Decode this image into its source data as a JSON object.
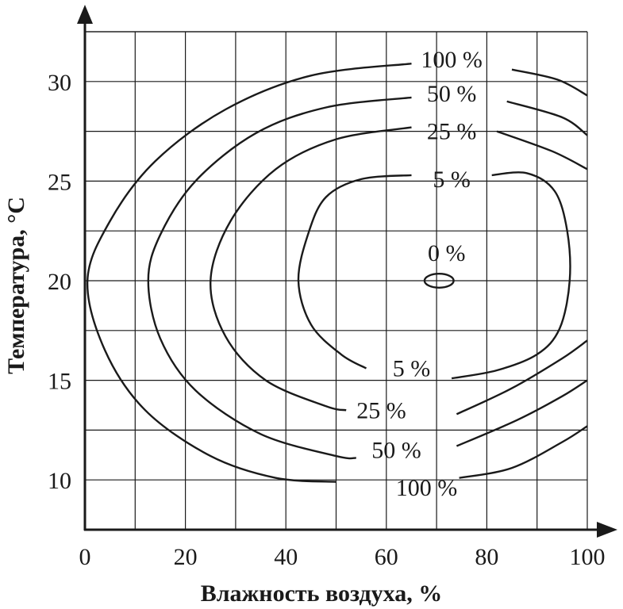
{
  "chart_data": {
    "type": "contour",
    "xlabel": "Влажность воздуха, %",
    "ylabel": "Температура, °C",
    "xlim": [
      0,
      100
    ],
    "ylim": [
      7.5,
      32.5
    ],
    "x_ticks": [
      {
        "value": 0,
        "label": "0"
      },
      {
        "value": 20,
        "label": "20"
      },
      {
        "value": 40,
        "label": "40"
      },
      {
        "value": 60,
        "label": "60"
      },
      {
        "value": 80,
        "label": "80"
      },
      {
        "value": 100,
        "label": "100"
      }
    ],
    "y_ticks": [
      {
        "value": 10,
        "label": "10"
      },
      {
        "value": 15,
        "label": "15"
      },
      {
        "value": 20,
        "label": "20"
      },
      {
        "value": 25,
        "label": "25"
      },
      {
        "value": 30,
        "label": "30"
      }
    ],
    "grid": true,
    "grid_x_step": 10,
    "grid_y_step": 2.5,
    "contours": [
      {
        "level": "100 %",
        "paths": [
          [
            [
              65,
              30.9
            ],
            [
              45,
              30.3
            ],
            [
              28,
              28.6
            ],
            [
              14,
              26.0
            ],
            [
              5,
              23.0
            ],
            [
              0.5,
              20.0
            ],
            [
              4,
              16.5
            ],
            [
              12,
              13.5
            ],
            [
              25,
              11.2
            ],
            [
              38,
              10.1
            ],
            [
              50,
              9.9
            ]
          ],
          [
            [
              74.5,
              10.1
            ],
            [
              85,
              10.6
            ],
            [
              95,
              11.9
            ],
            [
              100,
              12.7
            ]
          ],
          [
            [
              85,
              30.6
            ],
            [
              94,
              30.1
            ],
            [
              100,
              29.3
            ]
          ]
        ],
        "labels": [
          {
            "text": "100 %",
            "x": 73,
            "y": 31.1
          },
          {
            "text": "100 %",
            "x": 68,
            "y": 9.6
          }
        ]
      },
      {
        "level": "50 %",
        "paths": [
          [
            [
              65,
              29.2
            ],
            [
              48,
              28.7
            ],
            [
              34,
              27.4
            ],
            [
              22,
              25.0
            ],
            [
              15,
              22.3
            ],
            [
              12.6,
              20.0
            ],
            [
              15,
              17.1
            ],
            [
              22,
              14.5
            ],
            [
              35,
              12.3
            ],
            [
              50,
              11.2
            ],
            [
              54,
              11.1
            ]
          ],
          [
            [
              74,
              11.7
            ],
            [
              86,
              13.0
            ],
            [
              95,
              14.2
            ],
            [
              100,
              15.0
            ]
          ],
          [
            [
              84,
              29.0
            ],
            [
              95,
              28.2
            ],
            [
              100,
              27.3
            ]
          ]
        ],
        "labels": [
          {
            "text": "50 %",
            "x": 73,
            "y": 29.4
          },
          {
            "text": "50 %",
            "x": 62,
            "y": 11.5
          }
        ]
      },
      {
        "level": "25 %",
        "paths": [
          [
            [
              65,
              27.7
            ],
            [
              50,
              27.1
            ],
            [
              38,
              25.6
            ],
            [
              29,
              23.0
            ],
            [
              25,
              20.0
            ],
            [
              28,
              17.2
            ],
            [
              36,
              15.0
            ],
            [
              48,
              13.7
            ],
            [
              52,
              13.5
            ]
          ],
          [
            [
              74,
              13.3
            ],
            [
              85,
              14.6
            ],
            [
              95,
              16.1
            ],
            [
              100,
              17.0
            ]
          ],
          [
            [
              82,
              27.5
            ],
            [
              93,
              26.5
            ],
            [
              100,
              25.6
            ]
          ]
        ],
        "labels": [
          {
            "text": "25 %",
            "x": 73,
            "y": 27.5
          },
          {
            "text": "25 %",
            "x": 59,
            "y": 13.5
          }
        ]
      },
      {
        "level": "5 %",
        "paths": [
          [
            [
              65,
              25.3
            ],
            [
              55,
              25.1
            ],
            [
              48,
              24.2
            ],
            [
              44.5,
              22.4
            ],
            [
              42.5,
              20.0
            ],
            [
              45,
              17.8
            ],
            [
              51,
              16.3
            ],
            [
              56,
              15.6
            ]
          ],
          [
            [
              73,
              15.1
            ],
            [
              82,
              15.5
            ],
            [
              90,
              16.3
            ],
            [
              94.5,
              17.6
            ],
            [
              96.5,
              20.0
            ],
            [
              96,
              22.5
            ],
            [
              93.5,
              24.5
            ],
            [
              88,
              25.4
            ],
            [
              81,
              25.3
            ]
          ]
        ],
        "labels": [
          {
            "text": "5 %",
            "x": 73,
            "y": 25.1
          },
          {
            "text": "5 %",
            "x": 65,
            "y": 15.6
          }
        ]
      },
      {
        "level": "0 %",
        "ellipse": {
          "cx": 70.5,
          "cy": 20.0,
          "rx": 2.9,
          "ry": 0.35
        },
        "labels": [
          {
            "text": "0 %",
            "x": 72,
            "y": 21.4
          }
        ]
      }
    ]
  }
}
